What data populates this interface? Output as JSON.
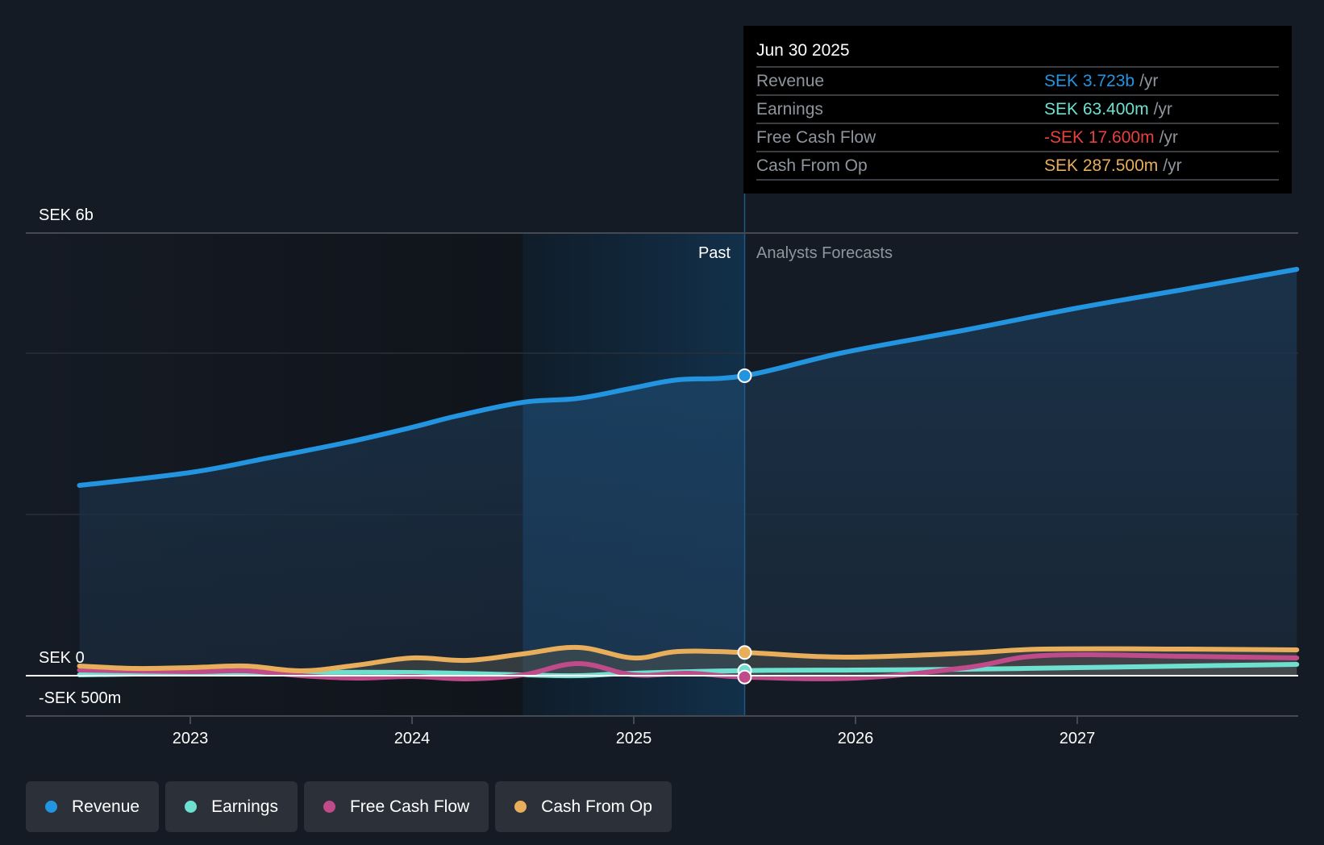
{
  "chart_data": {
    "type": "area",
    "title": "",
    "xlabel": "",
    "ylabel": "",
    "currency": "SEK",
    "y_axis_labels": [
      "SEK 6b",
      "SEK 0",
      "-SEK 500m"
    ],
    "ylim": [
      -0.5,
      5.49
    ],
    "y_unit": "SEK billions",
    "gridlines_at": [
      2,
      4
    ],
    "grid": true,
    "x_ticks": [
      2023,
      2024,
      2025,
      2026,
      2027
    ],
    "xlim": [
      2022.49,
      2027.99
    ],
    "past_region": {
      "label": "Past",
      "from": 2024.5,
      "to": 2025.5
    },
    "forecast_label": "Analysts Forecasts",
    "divider_x": 2025.5,
    "legend_position": "bottom-left",
    "series": [
      {
        "name": "Revenue",
        "color": "#2394df",
        "x": [
          2022.5,
          2023.0,
          2023.35,
          2023.7,
          2024.0,
          2024.2,
          2024.5,
          2024.75,
          2025.0,
          2025.2,
          2025.5,
          2025.95,
          2026.5,
          2027.0,
          2027.5,
          2027.99
        ],
        "values": [
          2.36,
          2.52,
          2.7,
          2.89,
          3.08,
          3.22,
          3.39,
          3.44,
          3.57,
          3.67,
          3.72,
          4.01,
          4.29,
          4.56,
          4.8,
          5.04
        ]
      },
      {
        "name": "Earnings",
        "color": "#6ee0d0",
        "x": [
          2022.5,
          2023.0,
          2023.5,
          2024.0,
          2024.5,
          2024.75,
          2025.0,
          2025.5,
          2026.0,
          2026.5,
          2027.0,
          2027.5,
          2027.99
        ],
        "values": [
          0.01,
          0.03,
          0.04,
          0.04,
          0.01,
          0.0,
          0.03,
          0.063,
          0.07,
          0.08,
          0.1,
          0.12,
          0.14
        ]
      },
      {
        "name": "Free Cash Flow",
        "color": "#c04b8a",
        "x": [
          2022.5,
          2023.0,
          2023.25,
          2023.5,
          2023.75,
          2024.0,
          2024.25,
          2024.5,
          2024.75,
          2025.0,
          2025.25,
          2025.5,
          2026.0,
          2026.5,
          2026.85,
          2027.5,
          2027.99
        ],
        "values": [
          0.07,
          0.05,
          0.06,
          0.0,
          -0.03,
          -0.01,
          -0.04,
          0.01,
          0.15,
          0.01,
          0.03,
          -0.0176,
          -0.03,
          0.1,
          0.25,
          0.24,
          0.22
        ]
      },
      {
        "name": "Cash From Op",
        "color": "#e8ae5b",
        "x": [
          2022.5,
          2022.75,
          2023.0,
          2023.25,
          2023.5,
          2023.75,
          2024.0,
          2024.25,
          2024.5,
          2024.75,
          2025.0,
          2025.2,
          2025.5,
          2025.95,
          2026.5,
          2026.85,
          2027.5,
          2027.99
        ],
        "values": [
          0.12,
          0.09,
          0.1,
          0.12,
          0.06,
          0.13,
          0.22,
          0.19,
          0.27,
          0.35,
          0.22,
          0.3,
          0.2875,
          0.23,
          0.28,
          0.33,
          0.33,
          0.32
        ]
      }
    ],
    "tooltip": {
      "date": "Jun 30 2025",
      "x": 2025.5,
      "rows": [
        {
          "label": "Revenue",
          "value": "SEK 3.723b",
          "unit": "/yr",
          "color": "#2394df"
        },
        {
          "label": "Earnings",
          "value": "SEK 63.400m",
          "unit": "/yr",
          "color": "#6ee0d0"
        },
        {
          "label": "Free Cash Flow",
          "value": "-SEK 17.600m",
          "unit": "/yr",
          "color": "#e7413f"
        },
        {
          "label": "Cash From Op",
          "value": "SEK 287.500m",
          "unit": "/yr",
          "color": "#e8ae5b"
        }
      ]
    }
  },
  "legend": [
    {
      "label": "Revenue",
      "color": "#2394df"
    },
    {
      "label": "Earnings",
      "color": "#6ee0d0"
    },
    {
      "label": "Free Cash Flow",
      "color": "#c04b8a"
    },
    {
      "label": "Cash From Op",
      "color": "#e8ae5b"
    }
  ]
}
